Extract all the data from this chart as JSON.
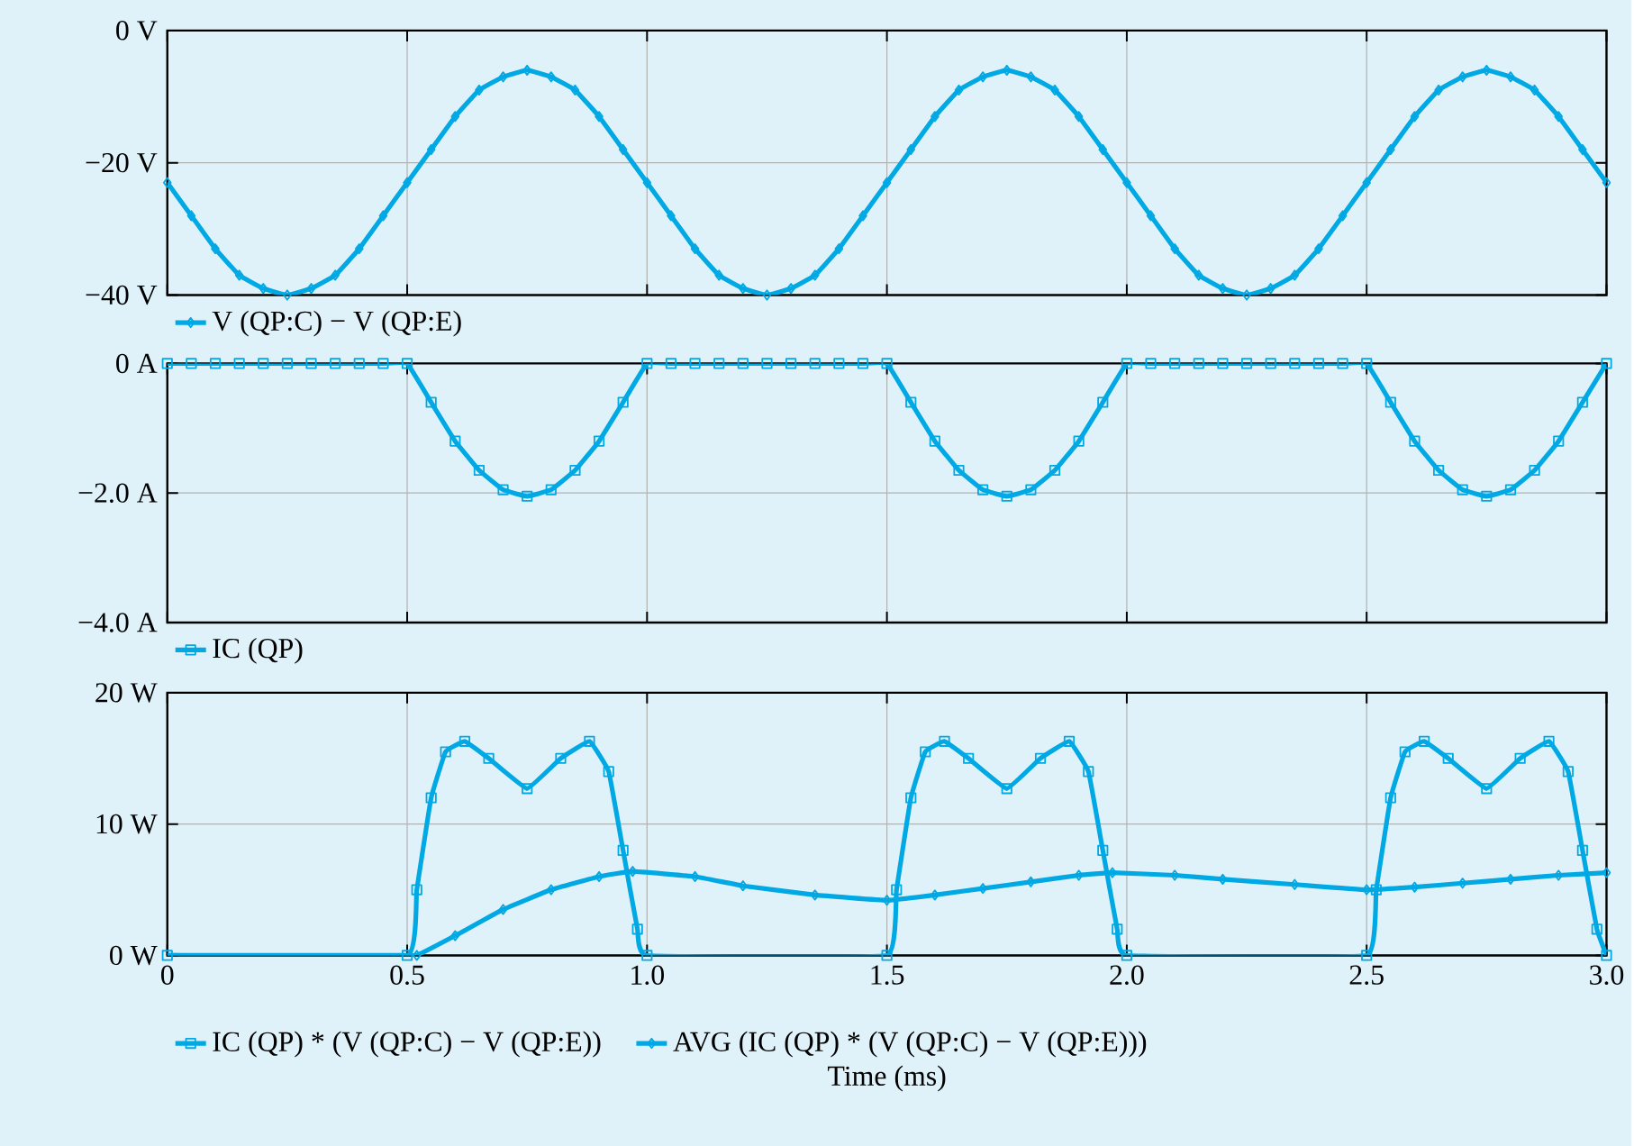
{
  "chart_data": [
    {
      "type": "line",
      "xlim": [
        0,
        3
      ],
      "xticks": [
        0,
        0.5,
        1,
        1.5,
        2,
        2.5,
        3
      ],
      "ylim": [
        -40,
        0
      ],
      "yticks": [
        {
          "value": 0,
          "label": "0 V"
        },
        {
          "value": -20,
          "label": "−20 V"
        },
        {
          "value": -40,
          "label": "−40 V"
        }
      ],
      "grid": true,
      "legend": "bottom left",
      "tick_labels": "y",
      "x": [
        0,
        0.05,
        0.1,
        0.15,
        0.2,
        0.25,
        0.3,
        0.35,
        0.4,
        0.45,
        0.5,
        0.55,
        0.6,
        0.65,
        0.7,
        0.75,
        0.8,
        0.85,
        0.9,
        0.95,
        1,
        1.05,
        1.1,
        1.15,
        1.2,
        1.25,
        1.3,
        1.35,
        1.4,
        1.45,
        1.5,
        1.55,
        1.6,
        1.65,
        1.7,
        1.75,
        1.8,
        1.85,
        1.9,
        1.95,
        2,
        2.05,
        2.1,
        2.15,
        2.2,
        2.25,
        2.3,
        2.35,
        2.4,
        2.45,
        2.5,
        2.55,
        2.6,
        2.65,
        2.7,
        2.75,
        2.8,
        2.85,
        2.9,
        2.95,
        3
      ],
      "series": [
        {
          "name": "V (QP:C) − V (QP:E)",
          "color": "#00a8e4",
          "marker": "diamond",
          "values": [
            -23,
            -28,
            -33,
            -37,
            -39,
            -40,
            -39,
            -37,
            -33,
            -28,
            -23,
            -18,
            -13,
            -9,
            -7,
            -6,
            -7,
            -9,
            -13,
            -18,
            -23,
            -28,
            -33,
            -37,
            -39,
            -40,
            -39,
            -37,
            -33,
            -28,
            -23,
            -18,
            -13,
            -9,
            -7,
            -6,
            -7,
            -9,
            -13,
            -18,
            -23,
            -28,
            -33,
            -37,
            -39,
            -40,
            -39,
            -37,
            -33,
            -28,
            -23,
            -18,
            -13,
            -9,
            -7,
            -6,
            -7,
            -9,
            -13,
            -18,
            -23
          ]
        }
      ]
    },
    {
      "type": "line",
      "xlim": [
        0,
        3
      ],
      "xticks": [
        0,
        0.5,
        1,
        1.5,
        2,
        2.5,
        3
      ],
      "ylim": [
        -4,
        0
      ],
      "yticks": [
        {
          "value": 0,
          "label": "0 A"
        },
        {
          "value": -2,
          "label": "−2.0 A"
        },
        {
          "value": -4,
          "label": "−4.0 A"
        }
      ],
      "grid": true,
      "legend": "bottom left",
      "tick_labels": "y",
      "x": [
        0,
        0.05,
        0.1,
        0.15,
        0.2,
        0.25,
        0.3,
        0.35,
        0.4,
        0.45,
        0.5,
        0.55,
        0.6,
        0.65,
        0.7,
        0.75,
        0.8,
        0.85,
        0.9,
        0.95,
        1,
        1.05,
        1.1,
        1.15,
        1.2,
        1.25,
        1.3,
        1.35,
        1.4,
        1.45,
        1.5,
        1.55,
        1.6,
        1.65,
        1.7,
        1.75,
        1.8,
        1.85,
        1.9,
        1.95,
        2,
        2.05,
        2.1,
        2.15,
        2.2,
        2.25,
        2.3,
        2.35,
        2.4,
        2.45,
        2.5,
        2.55,
        2.6,
        2.65,
        2.7,
        2.75,
        2.8,
        2.85,
        2.9,
        2.95,
        3
      ],
      "series": [
        {
          "name": "IC (QP)",
          "color": "#00a8e4",
          "marker": "square",
          "values": [
            0,
            0,
            0,
            0,
            0,
            0,
            0,
            0,
            0,
            0,
            0,
            -0.6,
            -1.2,
            -1.65,
            -1.95,
            -2.05,
            -1.95,
            -1.65,
            -1.2,
            -0.6,
            0,
            0,
            0,
            0,
            0,
            0,
            0,
            0,
            0,
            0,
            0,
            -0.6,
            -1.2,
            -1.65,
            -1.95,
            -2.05,
            -1.95,
            -1.65,
            -1.2,
            -0.6,
            0,
            0,
            0,
            0,
            0,
            0,
            0,
            0,
            0,
            0,
            0,
            -0.6,
            -1.2,
            -1.65,
            -1.95,
            -2.05,
            -1.95,
            -1.65,
            -1.2,
            -0.6,
            0
          ]
        }
      ]
    },
    {
      "type": "line",
      "xlim": [
        0,
        3
      ],
      "xticks": [
        {
          "value": 0,
          "label": "0"
        },
        {
          "value": 0.5,
          "label": "0.5"
        },
        {
          "value": 1,
          "label": "1.0"
        },
        {
          "value": 1.5,
          "label": "1.5"
        },
        {
          "value": 2,
          "label": "2.0"
        },
        {
          "value": 2.5,
          "label": "2.5"
        },
        {
          "value": 3,
          "label": "3.0"
        }
      ],
      "ylim": [
        0,
        20
      ],
      "yticks": [
        {
          "value": 0,
          "label": "0 W"
        },
        {
          "value": 10,
          "label": "10 W"
        },
        {
          "value": 20,
          "label": "20 W"
        }
      ],
      "grid": true,
      "legend": "bottom left",
      "xlabel": "Time (ms)",
      "series": [
        {
          "name": "IC (QP) * (V (QP:C) − V (QP:E))",
          "color": "#00a8e4",
          "marker": "square",
          "x": [
            0,
            0.5,
            0.52,
            0.55,
            0.58,
            0.62,
            0.67,
            0.75,
            0.82,
            0.88,
            0.92,
            0.95,
            0.98,
            1,
            1.5,
            1.52,
            1.55,
            1.58,
            1.62,
            1.67,
            1.75,
            1.82,
            1.88,
            1.92,
            1.95,
            1.98,
            2,
            2.5,
            2.52,
            2.55,
            2.58,
            2.62,
            2.67,
            2.75,
            2.82,
            2.88,
            2.92,
            2.95,
            2.98,
            3
          ],
          "values": [
            0,
            0,
            5,
            12,
            15.5,
            16.3,
            15,
            12.7,
            15,
            16.3,
            14,
            8,
            2,
            0,
            0,
            5,
            12,
            15.5,
            16.3,
            15,
            12.7,
            15,
            16.3,
            14,
            8,
            2,
            0,
            0,
            5,
            12,
            15.5,
            16.3,
            15,
            12.7,
            15,
            16.3,
            14,
            8,
            2,
            0
          ]
        },
        {
          "name": "AVG (IC (QP) * (V (QP:C) − V (QP:E)))",
          "color": "#00a8e4",
          "marker": "diamond",
          "x": [
            0,
            0.5,
            0.52,
            0.6,
            0.7,
            0.8,
            0.9,
            0.97,
            1.1,
            1.2,
            1.35,
            1.5,
            1.6,
            1.7,
            1.8,
            1.9,
            1.97,
            2.1,
            2.2,
            2.35,
            2.5,
            2.6,
            2.7,
            2.8,
            2.9,
            3
          ],
          "values": [
            0,
            0,
            0,
            1.5,
            3.5,
            5,
            6,
            6.4,
            6,
            5.3,
            4.6,
            4.2,
            4.6,
            5.1,
            5.6,
            6.1,
            6.3,
            6.1,
            5.8,
            5.4,
            5,
            5.2,
            5.5,
            5.8,
            6.1,
            6.3
          ]
        }
      ]
    }
  ]
}
